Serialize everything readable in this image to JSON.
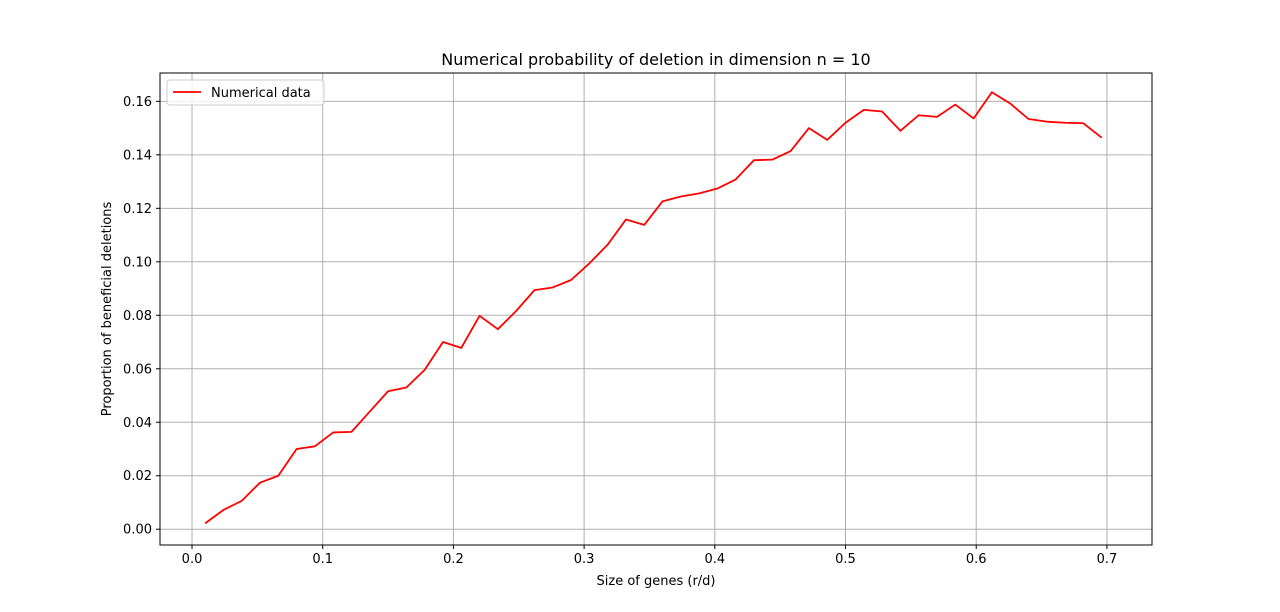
{
  "chart_data": {
    "type": "line",
    "title": "Numerical probability of deletion in dimension n = 10",
    "xlabel": "Size of genes (r/d)",
    "ylabel": "Proportion of beneficial deletions",
    "xlim": [
      -0.0245,
      0.7345
    ],
    "ylim": [
      -0.0059,
      0.1706
    ],
    "xticks": [
      0.0,
      0.1,
      0.2,
      0.3,
      0.4,
      0.5,
      0.6,
      0.7
    ],
    "xtick_labels": [
      "0.0",
      "0.1",
      "0.2",
      "0.3",
      "0.4",
      "0.5",
      "0.6",
      "0.7"
    ],
    "yticks": [
      0.0,
      0.02,
      0.04,
      0.06,
      0.08,
      0.1,
      0.12,
      0.14,
      0.16
    ],
    "ytick_labels": [
      "0.00",
      "0.02",
      "0.04",
      "0.06",
      "0.08",
      "0.10",
      "0.12",
      "0.14",
      "0.16"
    ],
    "grid": true,
    "legend_position": "top-left",
    "series": [
      {
        "name": "Numerical data",
        "color": "#ff0000",
        "x": [
          0.01,
          0.024,
          0.038,
          0.052,
          0.066,
          0.08,
          0.094,
          0.108,
          0.122,
          0.136,
          0.15,
          0.164,
          0.178,
          0.192,
          0.206,
          0.22,
          0.234,
          0.248,
          0.262,
          0.276,
          0.29,
          0.304,
          0.318,
          0.332,
          0.346,
          0.36,
          0.374,
          0.388,
          0.402,
          0.416,
          0.43,
          0.444,
          0.458,
          0.472,
          0.486,
          0.5,
          0.514,
          0.528,
          0.542,
          0.556,
          0.57,
          0.584,
          0.598,
          0.612,
          0.626,
          0.64,
          0.654,
          0.668,
          0.682,
          0.696
        ],
        "y": [
          0.0022,
          0.0072,
          0.0106,
          0.0174,
          0.02,
          0.03,
          0.031,
          0.0362,
          0.0364,
          0.044,
          0.0516,
          0.053,
          0.0596,
          0.07,
          0.0678,
          0.0798,
          0.0748,
          0.0816,
          0.0894,
          0.0904,
          0.0932,
          0.0994,
          0.1064,
          0.1158,
          0.1138,
          0.1226,
          0.1244,
          0.1256,
          0.1274,
          0.1308,
          0.138,
          0.1382,
          0.1414,
          0.15,
          0.1456,
          0.152,
          0.1568,
          0.1562,
          0.149,
          0.1548,
          0.1542,
          0.1588,
          0.1536,
          0.1634,
          0.1592,
          0.1534,
          0.1524,
          0.152,
          0.1518,
          0.1464
        ]
      }
    ]
  }
}
